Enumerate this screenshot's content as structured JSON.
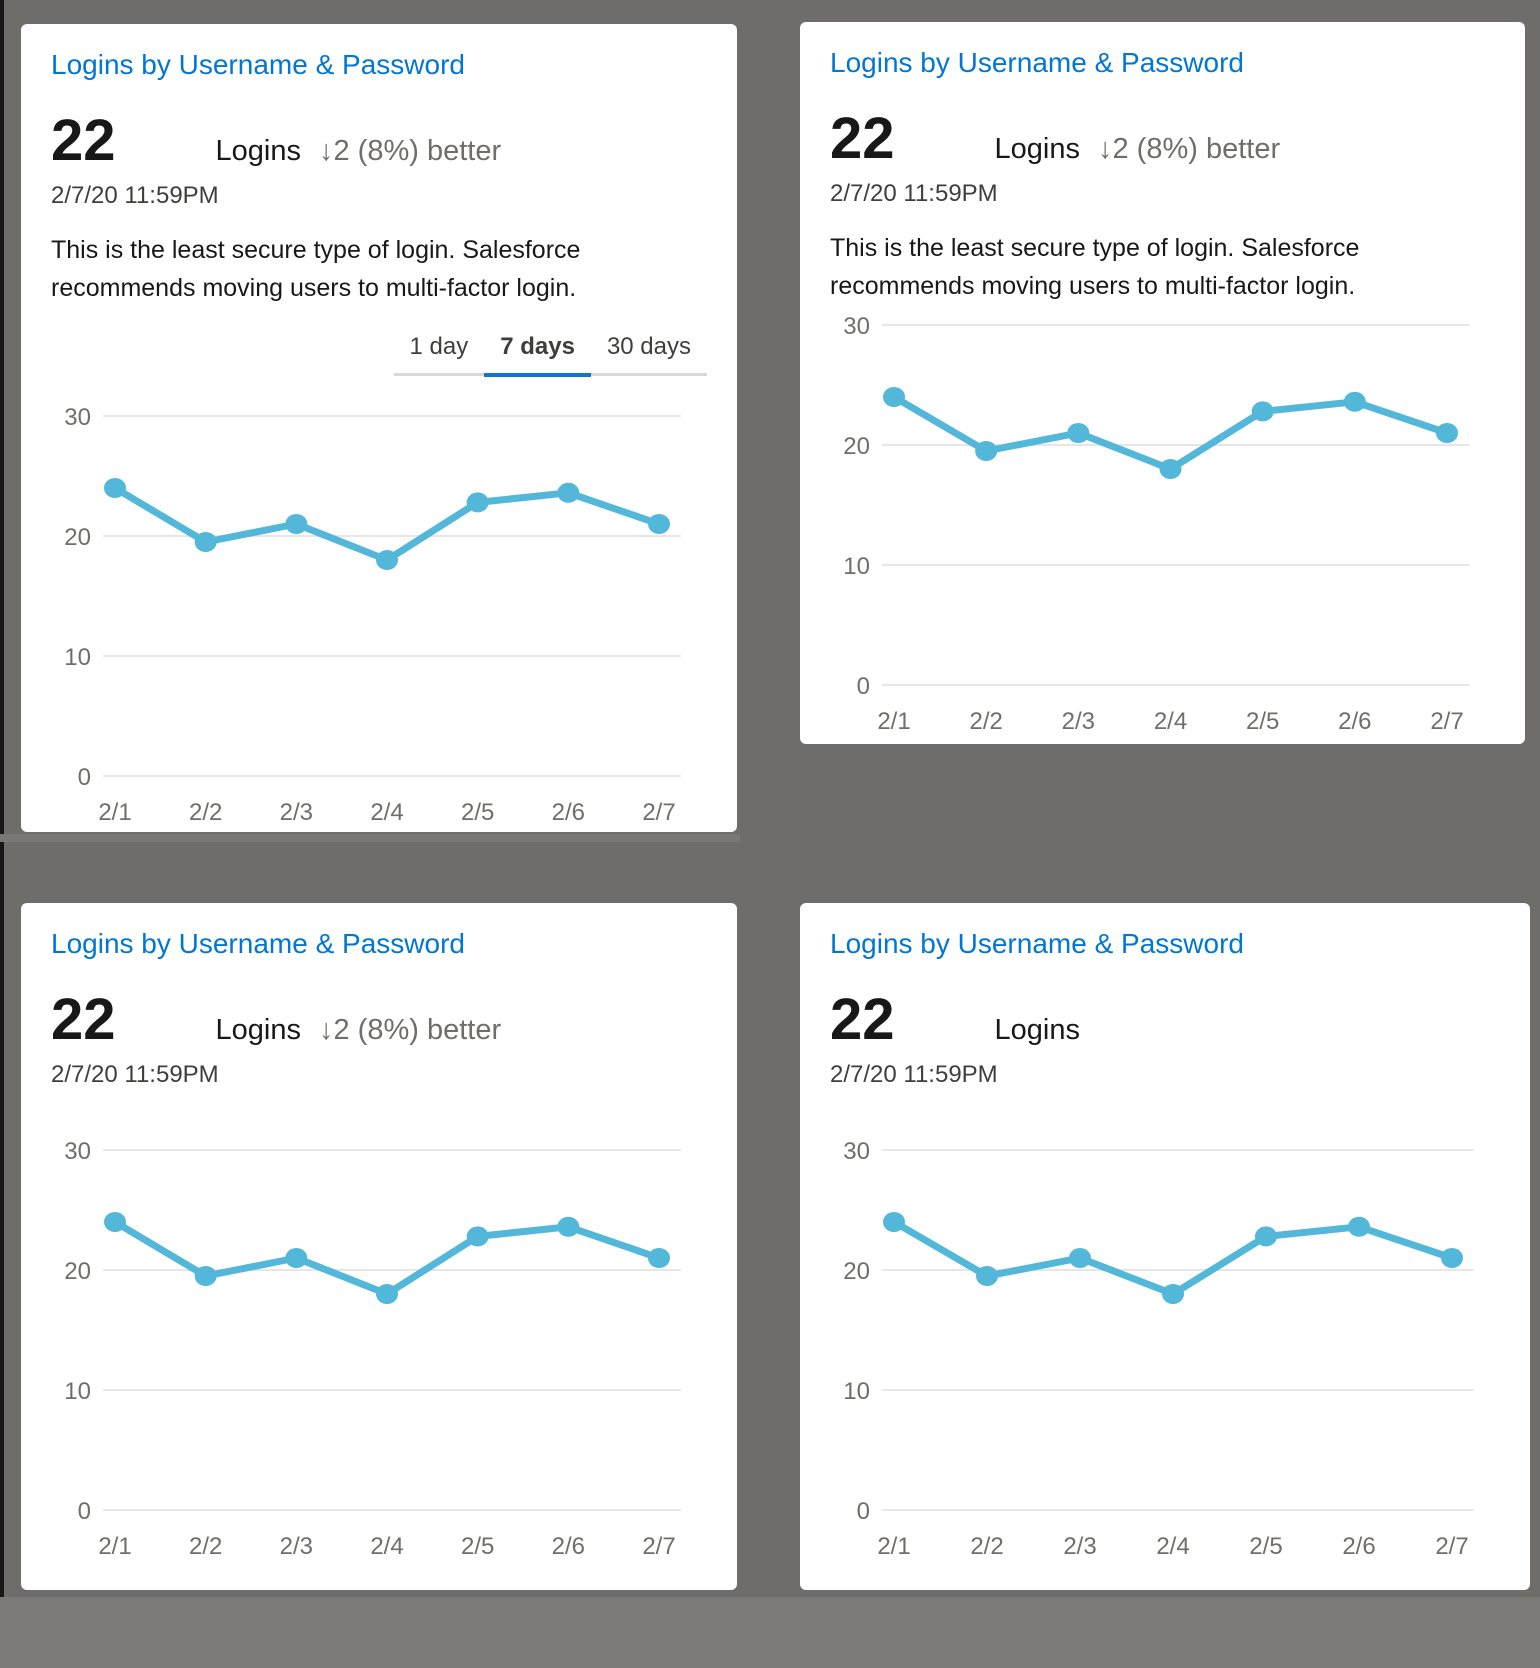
{
  "background": {
    "page_color": "#6F6D6A",
    "bottom_band_color": "#7C7A77",
    "left_edge_strip_color": "#161616",
    "seam_color": "#7A7875"
  },
  "colors": {
    "card_background": "#FFFFFF",
    "title_blue": "#0176D3",
    "metric_text": "#181818",
    "muted_gray": "#706E6B",
    "timestamp_gray": "#3E3E3C",
    "gridline_gray": "#E6E6E6",
    "tab_track_gray": "#D8D8D8",
    "tab_active_blue": "#0B76D8",
    "chart_line_blue": "#52B7D9"
  },
  "cards": [
    {
      "title": "Logins by Username & Password",
      "value": "22",
      "label": "Logins",
      "delta_arrow": "↓",
      "delta": "2 (8%) better",
      "timestamp": "2/7/20 11:59PM",
      "description": "This is the least secure type of login. Salesforce recommends moving users to multi-factor login.",
      "tabs": [
        {
          "label": "1 day",
          "active": false
        },
        {
          "label": "7 days",
          "active": true
        },
        {
          "label": "30 days",
          "active": false
        }
      ]
    },
    {
      "title": "Logins by Username & Password",
      "value": "22",
      "label": "Logins",
      "delta_arrow": "↓",
      "delta": "2 (8%) better",
      "timestamp": "2/7/20 11:59PM",
      "description": "This is the least secure type of login. Salesforce recommends moving users to multi-factor login."
    },
    {
      "title": "Logins by Username & Password",
      "value": "22",
      "label": "Logins",
      "delta_arrow": "↓",
      "delta": "2 (8%) better",
      "timestamp": "2/7/20 11:59PM"
    },
    {
      "title": "Logins by Username & Password",
      "value": "22",
      "label": "Logins",
      "timestamp": "2/7/20 11:59PM"
    }
  ],
  "chart_data": [
    {
      "type": "line",
      "title": "Logins by Username & Password",
      "categories": [
        "2/1",
        "2/2",
        "2/3",
        "2/4",
        "2/5",
        "2/6",
        "2/7"
      ],
      "series": [
        {
          "name": "Logins",
          "values": [
            24,
            19.5,
            21,
            18,
            22.8,
            23.6,
            21
          ]
        }
      ],
      "ylim": [
        0,
        30
      ],
      "yticks": [
        30,
        20,
        10,
        0
      ],
      "grid": true,
      "legend": "none",
      "line_color": "#52B7D9"
    },
    {
      "type": "line",
      "title": "Logins by Username & Password",
      "categories": [
        "2/1",
        "2/2",
        "2/3",
        "2/4",
        "2/5",
        "2/6",
        "2/7"
      ],
      "series": [
        {
          "name": "Logins",
          "values": [
            24,
            19.5,
            21,
            18,
            22.8,
            23.6,
            21
          ]
        }
      ],
      "ylim": [
        0,
        30
      ],
      "yticks": [
        30,
        20,
        10,
        0
      ],
      "grid": true,
      "legend": "none",
      "line_color": "#52B7D9"
    },
    {
      "type": "line",
      "title": "Logins by Username & Password",
      "categories": [
        "2/1",
        "2/2",
        "2/3",
        "2/4",
        "2/5",
        "2/6",
        "2/7"
      ],
      "series": [
        {
          "name": "Logins",
          "values": [
            24,
            19.5,
            21,
            18,
            22.8,
            23.6,
            21
          ]
        }
      ],
      "ylim": [
        0,
        30
      ],
      "yticks": [
        30,
        20,
        10,
        0
      ],
      "grid": true,
      "legend": "none",
      "line_color": "#52B7D9"
    },
    {
      "type": "line",
      "title": "Logins by Username & Password",
      "categories": [
        "2/1",
        "2/2",
        "2/3",
        "2/4",
        "2/5",
        "2/6",
        "2/7"
      ],
      "series": [
        {
          "name": "Logins",
          "values": [
            24,
            19.5,
            21,
            18,
            22.8,
            23.6,
            21
          ]
        }
      ],
      "ylim": [
        0,
        30
      ],
      "yticks": [
        30,
        20,
        10,
        0
      ],
      "grid": true,
      "legend": "none",
      "line_color": "#52B7D9"
    }
  ]
}
